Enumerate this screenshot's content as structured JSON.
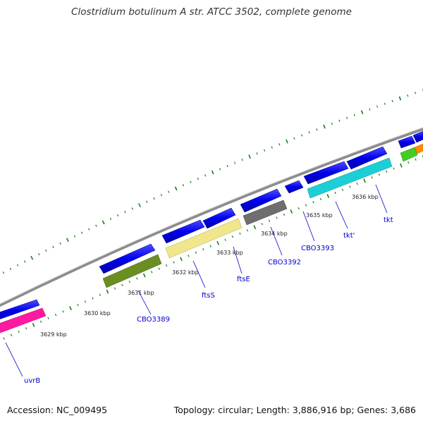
{
  "title": "Clostridium botulinum A str. ATCC 3502, complete genome",
  "footer": {
    "accession": "Accession: NC_009495",
    "summary": "Topology: circular; Length: 3,886,916 bp; Genes: 3,686"
  },
  "colors": {
    "backbone": "#8c8c8c",
    "tick": "#1e7a1e",
    "forward_gene": "#0000ee",
    "label": "#0000cc"
  },
  "kbp_labels": [
    "3629 kbp",
    "3630 kbp",
    "3631 kbp",
    "3632 kbp",
    "3633 kbp",
    "3634 kbp",
    "3635 kbp",
    "3636 kbp"
  ],
  "gene_labels": [
    "uvrB",
    "CBO3389",
    "ftsS",
    "ftsE",
    "CBO3392",
    "CBO3393",
    "tkt'",
    "tkt"
  ]
}
